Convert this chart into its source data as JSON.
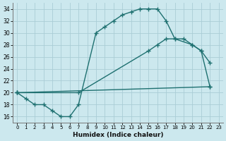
{
  "xlabel": "Humidex (Indice chaleur)",
  "xlim": [
    -0.5,
    23.5
  ],
  "ylim": [
    15.0,
    35.0
  ],
  "yticks": [
    16,
    18,
    20,
    22,
    24,
    26,
    28,
    30,
    32,
    34
  ],
  "xticks": [
    0,
    1,
    2,
    3,
    4,
    5,
    6,
    7,
    8,
    9,
    10,
    11,
    12,
    13,
    14,
    15,
    16,
    17,
    18,
    19,
    20,
    21,
    22,
    23
  ],
  "bg_color": "#cce8ee",
  "grid_color": "#aacdd6",
  "line_color": "#1e7070",
  "line1_x": [
    0,
    1,
    2,
    3,
    4,
    5,
    6,
    7,
    9,
    10,
    11,
    12,
    13,
    14,
    15,
    16,
    17,
    18,
    20,
    21,
    22
  ],
  "line1_y": [
    20,
    19,
    18,
    18,
    17,
    16,
    16,
    18,
    30,
    31,
    32,
    33,
    33.5,
    34,
    34,
    34,
    32,
    29,
    28,
    27,
    25
  ],
  "line2_x": [
    0,
    7,
    15,
    16,
    17,
    18,
    19,
    20,
    21,
    22
  ],
  "line2_y": [
    20,
    20,
    27,
    28,
    29,
    29,
    29,
    28,
    27,
    21
  ],
  "line3_x": [
    0,
    22
  ],
  "line3_y": [
    20,
    21
  ]
}
